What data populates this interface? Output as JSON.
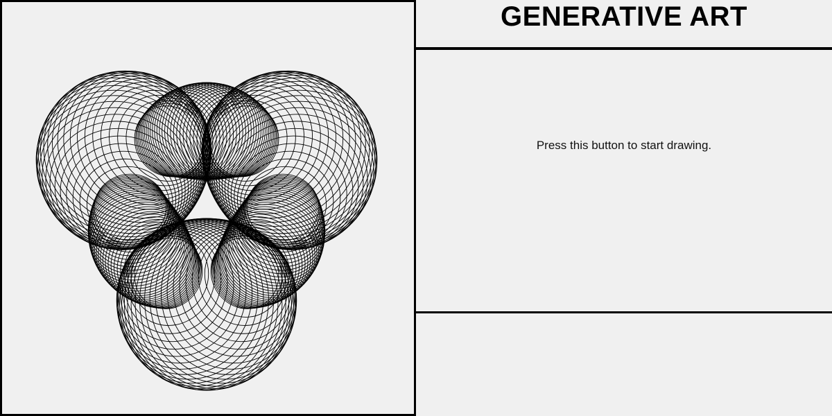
{
  "header": {
    "title": "GENERATIVE ART"
  },
  "controls": {
    "instruction": "Press this button to start drawing."
  },
  "artwork": {
    "stroke_color": "#000000",
    "background_color": "#f0f0f0"
  }
}
